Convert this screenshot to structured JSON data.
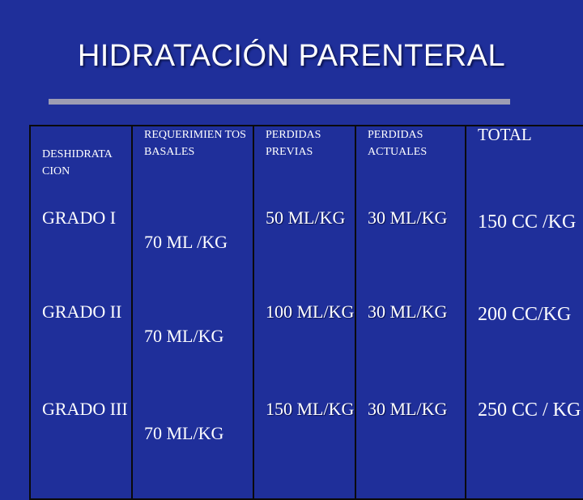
{
  "title": "HIDRATACIÓN PARENTERAL",
  "table": {
    "headers": [
      "DESHIDRATA CION",
      "REQUERIMIEN TOS BASALES",
      "PERDIDAS PREVIAS",
      "PERDIDAS ACTUALES",
      "TOTAL"
    ],
    "rows": [
      [
        "GRADO I",
        "70 ML /KG",
        "50 ML/KG",
        "30 ML/KG",
        "150 CC /KG"
      ],
      [
        "GRADO II",
        "70 ML/KG",
        "100 ML/KG",
        "30 ML/KG",
        "200 CC/KG"
      ],
      [
        "GRADO III",
        "70 ML/KG",
        "150 ML/KG",
        "30 ML/KG",
        "250 CC / KG"
      ]
    ]
  },
  "colors": {
    "background": "#1f2f9a",
    "rule": "#9d9db3",
    "text": "#ffffff"
  }
}
